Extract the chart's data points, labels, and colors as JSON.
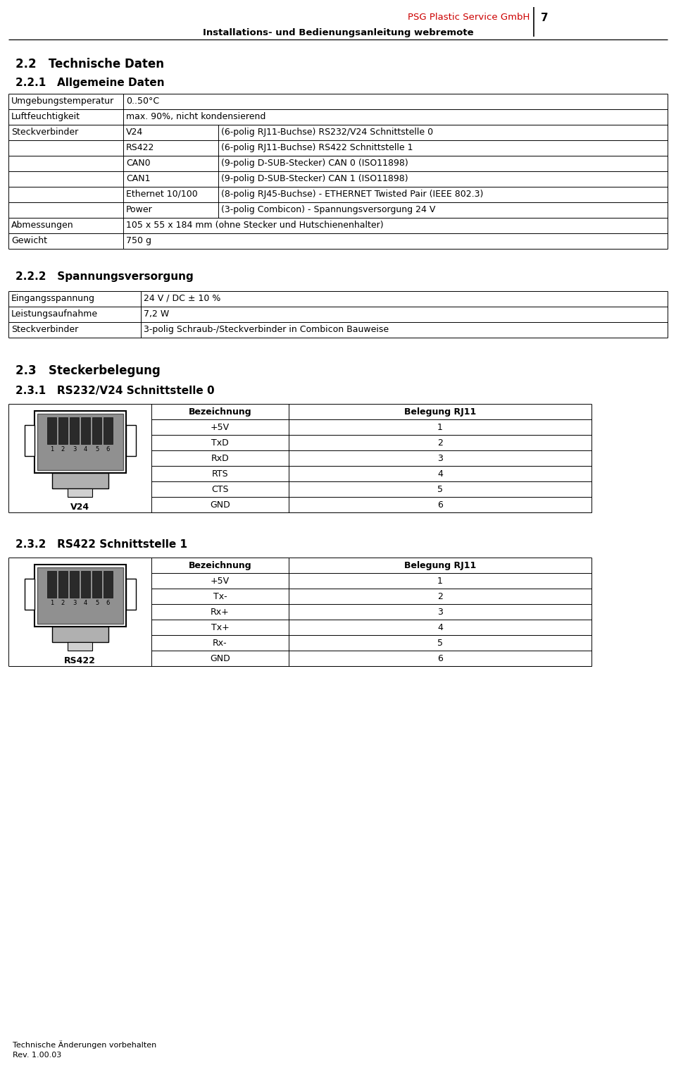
{
  "bg_color": "#ffffff",
  "header_company": "PSG Plastic Service GmbH",
  "header_company_color": "#cc0000",
  "header_page": "7",
  "header_subtitle": "Installations- und Bedienungsanleitung webremote",
  "section_22_title": "2.2   Technische Daten",
  "section_221_title": "2.2.1   Allgemeine Daten",
  "table1_rows": [
    [
      "Umgebungstemperatur",
      "0..50°C",
      ""
    ],
    [
      "Luftfeuchtigkeit",
      "max. 90%, nicht kondensierend",
      ""
    ],
    [
      "Steckverbinder",
      "V24",
      "(6-polig RJ11-Buchse) RS232/V24 Schnittstelle 0"
    ],
    [
      "",
      "RS422",
      "(6-polig RJ11-Buchse) RS422 Schnittstelle 1"
    ],
    [
      "",
      "CAN0",
      "(9-polig D-SUB-Stecker) CAN 0 (ISO11898)"
    ],
    [
      "",
      "CAN1",
      "(9-polig D-SUB-Stecker) CAN 1 (ISO11898)"
    ],
    [
      "",
      "Ethernet 10/100",
      "(8-polig RJ45-Buchse) - ETHERNET Twisted Pair (IEEE 802.3)"
    ],
    [
      "",
      "Power",
      "(3-polig Combicon) - Spannungsversorgung 24 V"
    ],
    [
      "Abmessungen",
      "105 x 55 x 184 mm (ohne Stecker und Hutschienenhalter)",
      ""
    ],
    [
      "Gewicht",
      "750 g",
      ""
    ]
  ],
  "section_222_title": "2.2.2   Spannungsversorgung",
  "table2_rows": [
    [
      "Eingangsspannung",
      "24 V / DC ± 10 %"
    ],
    [
      "Leistungsaufnahme",
      "7,2 W"
    ],
    [
      "Steckverbinder",
      "3-polig Schraub-/Steckverbinder in Combicon Bauweise"
    ]
  ],
  "section_23_title": "2.3   Steckerbelegung",
  "section_231_title": "2.3.1   RS232/V24 Schnittstelle 0",
  "table3_header": [
    "Bezeichnung",
    "Belegung RJ11"
  ],
  "table3_rows": [
    [
      "+5V",
      "1"
    ],
    [
      "TxD",
      "2"
    ],
    [
      "RxD",
      "3"
    ],
    [
      "RTS",
      "4"
    ],
    [
      "CTS",
      "5"
    ],
    [
      "GND",
      "6"
    ]
  ],
  "connector1_label": "V24",
  "section_232_title": "2.3.2   RS422 Schnittstelle 1",
  "table4_header": [
    "Bezeichnung",
    "Belegung RJ11"
  ],
  "table4_rows": [
    [
      "+5V",
      "1"
    ],
    [
      "Tx-",
      "2"
    ],
    [
      "Rx+",
      "3"
    ],
    [
      "Tx+",
      "4"
    ],
    [
      "Rx-",
      "5"
    ],
    [
      "GND",
      "6"
    ]
  ],
  "connector2_label": "RS422",
  "footer1": "Technische Änderungen vorbehalten",
  "footer2": "Rev. 1.00.03"
}
